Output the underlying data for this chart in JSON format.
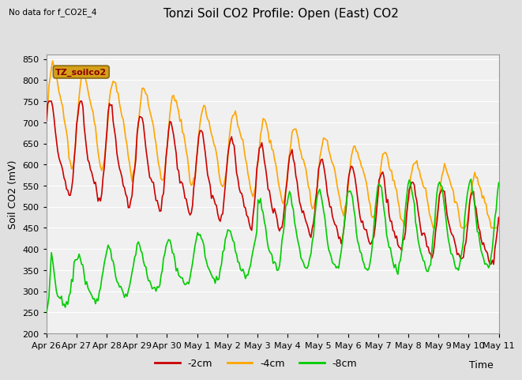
{
  "title": "Tonzi Soil CO2 Profile: Open (East) CO2",
  "subtitle": "No data for f_CO2E_4",
  "ylabel": "Soil CO2 (mV)",
  "xlabel": "Time",
  "ylim": [
    200,
    860
  ],
  "yticks": [
    200,
    250,
    300,
    350,
    400,
    450,
    500,
    550,
    600,
    650,
    700,
    750,
    800,
    850
  ],
  "legend_label_2cm": "-2cm",
  "legend_label_4cm": "-4cm",
  "legend_label_8cm": "-8cm",
  "color_2cm": "#cc0000",
  "color_4cm": "#ffa500",
  "color_8cm": "#00cc00",
  "legend_box_facecolor": "#d4a017",
  "legend_box_edgecolor": "#8B6914",
  "legend_text": "TZ_soilco2",
  "bg_color": "#e0e0e0",
  "plot_bg_color": "#f0f0f0",
  "grid_color": "#ffffff",
  "xtick_labels": [
    "Apr 26",
    "Apr 27",
    "Apr 28",
    "Apr 29",
    "Apr 30",
    "May 1",
    "May 2",
    "May 3",
    "May 4",
    "May 5",
    "May 6",
    "May 7",
    "May 8",
    "May 9",
    "May 10",
    "May 11"
  ],
  "title_fontsize": 11,
  "axis_label_fontsize": 9,
  "tick_fontsize": 8
}
